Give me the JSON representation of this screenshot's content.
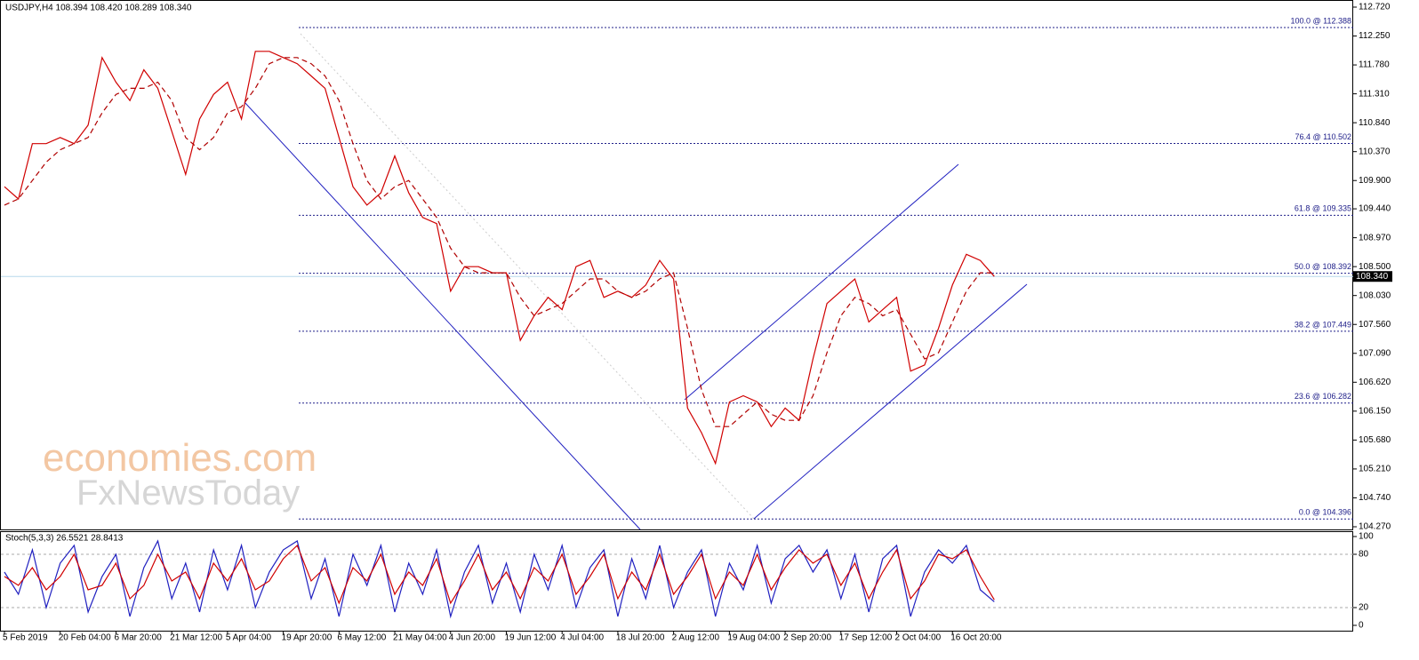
{
  "watermark": [
    "economies.com",
    "FxNewsToday"
  ],
  "chart_data": [
    {
      "type": "line",
      "title": "USDJPY,H4  108.394 108.420 108.289 108.340",
      "ylim": [
        104.27,
        112.72
      ],
      "yticks": [
        {
          "value": 104.27,
          "label": "104.270"
        },
        {
          "value": 104.74,
          "label": "104.740"
        },
        {
          "value": 105.21,
          "label": "105.210"
        },
        {
          "value": 105.68,
          "label": "105.680"
        },
        {
          "value": 106.15,
          "label": "106.150"
        },
        {
          "value": 106.62,
          "label": "106.620"
        },
        {
          "value": 107.09,
          "label": "107.090"
        },
        {
          "value": 107.56,
          "label": "107.560"
        },
        {
          "value": 108.03,
          "label": "108.030"
        },
        {
          "value": 108.5,
          "label": "108.500"
        },
        {
          "value": 108.97,
          "label": "108.970"
        },
        {
          "value": 109.44,
          "label": "109.440"
        },
        {
          "value": 109.9,
          "label": "109.900"
        },
        {
          "value": 110.37,
          "label": "110.370"
        },
        {
          "value": 110.84,
          "label": "110.840"
        },
        {
          "value": 111.31,
          "label": "111.310"
        },
        {
          "value": 111.78,
          "label": "111.780"
        },
        {
          "value": 112.25,
          "label": "112.250"
        },
        {
          "value": 112.72,
          "label": "112.720"
        }
      ],
      "series": [
        {
          "color": "#d00000",
          "values": [
            109.8,
            109.6,
            110.5,
            110.5,
            110.6,
            110.5,
            110.8,
            111.9,
            111.5,
            111.2,
            111.7,
            111.4,
            110.7,
            110.0,
            110.9,
            111.3,
            111.5,
            110.9,
            112.0,
            112.0,
            111.9,
            111.8,
            111.6,
            111.4,
            110.6,
            109.8,
            109.5,
            109.7,
            110.3,
            109.7,
            109.3,
            109.2,
            108.1,
            108.5,
            108.5,
            108.4,
            108.4,
            107.3,
            107.7,
            108.0,
            107.8,
            108.5,
            108.6,
            108.0,
            108.1,
            108.0,
            108.2,
            108.6,
            108.3,
            106.2,
            105.8,
            105.3,
            106.3,
            106.4,
            106.3,
            105.9,
            106.2,
            106.0,
            107.0,
            107.9,
            108.1,
            108.3,
            107.6,
            107.8,
            108.0,
            106.8,
            106.9,
            107.5,
            108.2,
            108.7,
            108.6,
            108.34
          ]
        },
        {
          "color": "#b00000",
          "dashed": true,
          "values": [
            109.5,
            109.6,
            109.9,
            110.2,
            110.4,
            110.5,
            110.6,
            111.0,
            111.3,
            111.4,
            111.4,
            111.5,
            111.2,
            110.6,
            110.4,
            110.6,
            111.0,
            111.1,
            111.4,
            111.8,
            111.9,
            111.9,
            111.8,
            111.6,
            111.2,
            110.5,
            109.9,
            109.6,
            109.8,
            109.9,
            109.6,
            109.3,
            108.8,
            108.5,
            108.4,
            108.4,
            108.4,
            108.0,
            107.7,
            107.8,
            107.9,
            108.1,
            108.3,
            108.3,
            108.1,
            108.0,
            108.1,
            108.3,
            108.4,
            107.5,
            106.5,
            105.9,
            105.9,
            106.1,
            106.3,
            106.1,
            106.0,
            106.0,
            106.4,
            107.1,
            107.7,
            108.0,
            107.9,
            107.7,
            107.8,
            107.4,
            107.0,
            107.1,
            107.6,
            108.1,
            108.4,
            108.4
          ]
        }
      ],
      "levels": [
        {
          "value": 112.388,
          "label": "100.0 @ 112.388"
        },
        {
          "value": 110.502,
          "label": "76.4 @ 110.502"
        },
        {
          "value": 109.335,
          "label": "61.8 @ 109.335"
        },
        {
          "value": 108.392,
          "label": "50.0 @ 108.392"
        },
        {
          "value": 107.449,
          "label": "38.2 @ 107.449"
        },
        {
          "value": 106.282,
          "label": "23.6 @ 106.282"
        },
        {
          "value": 104.396,
          "label": "0.0 @ 104.396"
        }
      ],
      "last": {
        "value": 108.34,
        "label": "108.340"
      }
    },
    {
      "type": "line",
      "title": "Stoch(5,3,3) 26.5521 28.8413",
      "categories": [
        "5 Feb 2019",
        null,
        null,
        null,
        "20 Feb 04:00",
        null,
        null,
        null,
        "6 Mar 20:00",
        null,
        null,
        null,
        "21 Mar 12:00",
        null,
        null,
        null,
        "5 Apr 04:00",
        null,
        null,
        null,
        "19 Apr 20:00",
        null,
        null,
        null,
        "6 May 12:00",
        null,
        null,
        null,
        "21 May 04:00",
        null,
        null,
        null,
        "4 Jun 20:00",
        null,
        null,
        null,
        "19 Jun 12:00",
        null,
        null,
        null,
        "4 Jul 04:00",
        null,
        null,
        null,
        "18 Jul 20:00",
        null,
        null,
        null,
        "2 Aug 12:00",
        null,
        null,
        null,
        "19 Aug 04:00",
        null,
        null,
        null,
        "2 Sep 20:00",
        null,
        null,
        null,
        "17 Sep 12:00",
        null,
        null,
        null,
        "2 Oct 04:00",
        null,
        null,
        null,
        "16 Oct 20:00",
        null,
        null,
        null
      ],
      "ylim": [
        0,
        100
      ],
      "yticks": [
        0,
        20,
        80,
        100
      ],
      "grid_levels": [
        20,
        80
      ],
      "series": [
        {
          "color": "#2020c0",
          "values": [
            60,
            35,
            85,
            20,
            70,
            90,
            15,
            55,
            80,
            10,
            65,
            95,
            30,
            70,
            15,
            85,
            40,
            90,
            20,
            60,
            85,
            95,
            30,
            75,
            10,
            80,
            45,
            90,
            15,
            70,
            35,
            85,
            10,
            60,
            90,
            25,
            70,
            15,
            80,
            40,
            90,
            20,
            65,
            85,
            10,
            75,
            30,
            90,
            20,
            60,
            85,
            10,
            70,
            40,
            90,
            25,
            75,
            90,
            60,
            85,
            30,
            80,
            15,
            75,
            90,
            10,
            60,
            85,
            70,
            90,
            40,
            26.5521
          ]
        },
        {
          "color": "#d00000",
          "values": [
            55,
            45,
            65,
            40,
            55,
            80,
            40,
            45,
            70,
            30,
            45,
            80,
            50,
            60,
            30,
            70,
            50,
            75,
            40,
            50,
            75,
            90,
            50,
            65,
            25,
            65,
            50,
            80,
            35,
            60,
            45,
            75,
            25,
            50,
            80,
            40,
            60,
            30,
            65,
            50,
            80,
            35,
            55,
            80,
            30,
            60,
            40,
            80,
            35,
            55,
            80,
            30,
            60,
            45,
            80,
            40,
            65,
            85,
            70,
            80,
            45,
            70,
            30,
            60,
            85,
            30,
            50,
            80,
            75,
            85,
            55,
            28.8413
          ]
        }
      ]
    }
  ]
}
